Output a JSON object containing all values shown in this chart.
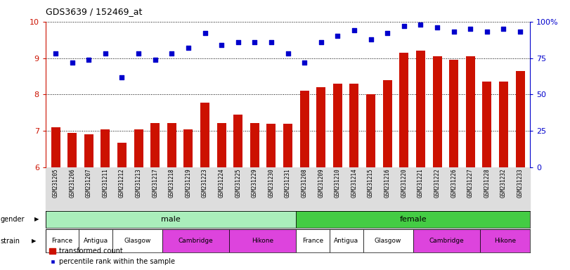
{
  "title": "GDS3639 / 152469_at",
  "samples": [
    "GSM231205",
    "GSM231206",
    "GSM231207",
    "GSM231211",
    "GSM231212",
    "GSM231213",
    "GSM231217",
    "GSM231218",
    "GSM231219",
    "GSM231223",
    "GSM231224",
    "GSM231225",
    "GSM231229",
    "GSM231230",
    "GSM231231",
    "GSM231208",
    "GSM231209",
    "GSM231210",
    "GSM231214",
    "GSM231215",
    "GSM231216",
    "GSM231220",
    "GSM231221",
    "GSM231222",
    "GSM231226",
    "GSM231227",
    "GSM231228",
    "GSM231232",
    "GSM231233"
  ],
  "bar_values": [
    7.1,
    6.95,
    6.9,
    7.05,
    6.68,
    7.05,
    7.22,
    7.22,
    7.05,
    7.78,
    7.22,
    7.45,
    7.22,
    7.2,
    7.2,
    8.1,
    8.2,
    8.3,
    8.3,
    8.0,
    8.4,
    9.15,
    9.2,
    9.05,
    8.95,
    9.05,
    8.35,
    8.35,
    8.65
  ],
  "dot_values_pct": [
    78,
    72,
    74,
    78,
    62,
    78,
    74,
    78,
    82,
    92,
    84,
    86,
    86,
    86,
    78,
    72,
    86,
    90,
    94,
    88,
    92,
    97,
    98,
    96,
    93,
    95,
    93,
    95,
    93
  ],
  "bar_color": "#cc1100",
  "dot_color": "#0000cc",
  "ylim_left": [
    6,
    10
  ],
  "yticks_left": [
    6,
    7,
    8,
    9,
    10
  ],
  "ylim_right": [
    0,
    100
  ],
  "yticks_right": [
    0,
    25,
    50,
    75,
    100
  ],
  "gender_male_count": 15,
  "gender_female_count": 14,
  "strains_male": [
    "France",
    "Antigua",
    "Glasgow",
    "Cambridge",
    "Hikone"
  ],
  "strains_female": [
    "France",
    "Antigua",
    "Glasgow",
    "Cambridge",
    "Hikone"
  ],
  "male_boundaries": [
    0,
    2,
    4,
    7,
    11,
    15
  ],
  "female_boundaries": [
    15,
    17,
    19,
    22,
    26,
    29
  ],
  "strain_colors": [
    "#ffffff",
    "#ffffff",
    "#ffffff",
    "#dd44dd",
    "#dd44dd"
  ],
  "gender_male_color": "#aaeebb",
  "gender_female_color": "#44cc44",
  "xtick_bg_color": "#dddddd",
  "legend_items": [
    "transformed count",
    "percentile rank within the sample"
  ]
}
